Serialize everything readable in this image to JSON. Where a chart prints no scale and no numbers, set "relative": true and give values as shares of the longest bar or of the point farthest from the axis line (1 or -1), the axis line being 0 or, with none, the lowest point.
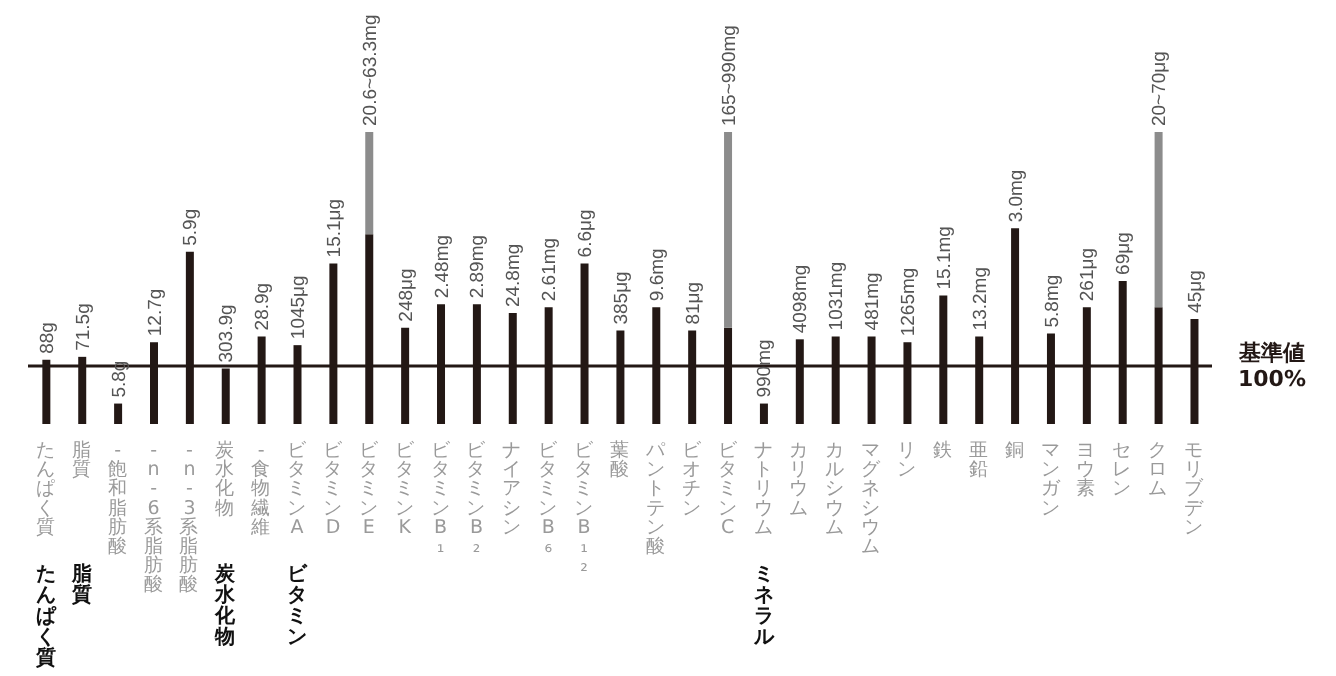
{
  "chart_data": {
    "type": "bar",
    "relative": true,
    "stacked": true,
    "categories": [
      "たんぱく質",
      "脂質",
      "-飽和脂肪酸",
      "-n-6系脂肪酸",
      "-n-3系脂肪酸",
      "炭水化物",
      "-食物繊維",
      "ビタミンA",
      "ビタミンD",
      "ビタミンE",
      "ビタミンK",
      "ビタミンB₁",
      "ビタミンB₂",
      "ナイアシン",
      "ビタミンB₆",
      "ビタミンB₁₂",
      "葉酸",
      "パントテン酸",
      "ビオチン",
      "ビタミンC",
      "ナトリウム",
      "カリウム",
      "カルシウム",
      "マグネシウム",
      "リン",
      "鉄",
      "亜鉛",
      "銅",
      "マンガン",
      "ヨウ素",
      "セレン",
      "クロム",
      "モリブデン"
    ],
    "series": [
      {
        "color": "#231815",
        "values": [
          0.22,
          0.23,
          0.07,
          0.28,
          0.59,
          0.19,
          0.3,
          0.27,
          0.55,
          0.65,
          0.33,
          0.41,
          0.41,
          0.38,
          0.4,
          0.55,
          0.32,
          0.4,
          0.32,
          0.33,
          0.07,
          0.29,
          0.3,
          0.3,
          0.28,
          0.44,
          0.3,
          0.67,
          0.31,
          0.4,
          0.49,
          0.4,
          0.36
        ]
      },
      {
        "color": "#8c8c8c",
        "values": [
          null,
          null,
          null,
          null,
          null,
          null,
          null,
          null,
          null,
          0.35,
          null,
          null,
          null,
          null,
          null,
          null,
          null,
          null,
          null,
          0.67,
          null,
          null,
          null,
          null,
          null,
          null,
          null,
          null,
          null,
          null,
          null,
          0.6,
          null
        ]
      }
    ],
    "ref_lines": [
      {
        "axis": "y",
        "value": 0.199,
        "label": "基準値 100%",
        "color": "#231815"
      }
    ],
    "annotations": [
      {
        "text": "88g",
        "x": "たんぱく質",
        "y": 0.22
      },
      {
        "text": "71.5g",
        "x": "脂質",
        "y": 0.23
      },
      {
        "text": "5.8g",
        "x": "-飽和脂肪酸",
        "y": 0.07
      },
      {
        "text": "12.7g",
        "x": "-n-6系脂肪酸",
        "y": 0.28
      },
      {
        "text": "5.9g",
        "x": "-n-3系脂肪酸",
        "y": 0.59
      },
      {
        "text": "303.9g",
        "x": "炭水化物",
        "y": 0.19
      },
      {
        "text": "28.9g",
        "x": "-食物繊維",
        "y": 0.3
      },
      {
        "text": "1045μg",
        "x": "ビタミンA",
        "y": 0.27
      },
      {
        "text": "15.1μg",
        "x": "ビタミンD",
        "y": 0.55
      },
      {
        "text": "20.6~63.3mg",
        "x": "ビタミンE",
        "y": 1.0
      },
      {
        "text": "248μg",
        "x": "ビタミンK",
        "y": 0.33
      },
      {
        "text": "2.48mg",
        "x": "ビタミンB₁",
        "y": 0.41
      },
      {
        "text": "2.89mg",
        "x": "ビタミンB₂",
        "y": 0.41
      },
      {
        "text": "24.8mg",
        "x": "ナイアシン",
        "y": 0.38
      },
      {
        "text": "2.61mg",
        "x": "ビタミンB₆",
        "y": 0.4
      },
      {
        "text": "6.6μg",
        "x": "ビタミンB₁₂",
        "y": 0.55
      },
      {
        "text": "385μg",
        "x": "葉酸",
        "y": 0.32
      },
      {
        "text": "9.6mg",
        "x": "パントテン酸",
        "y": 0.4
      },
      {
        "text": "81μg",
        "x": "ビオチン",
        "y": 0.32
      },
      {
        "text": "165~990mg",
        "x": "ビタミンC",
        "y": 1.0
      },
      {
        "text": "990mg",
        "x": "ナトリウム",
        "y": 0.07
      },
      {
        "text": "4098mg",
        "x": "カリウム",
        "y": 0.29
      },
      {
        "text": "1031mg",
        "x": "カルシウム",
        "y": 0.3
      },
      {
        "text": "481mg",
        "x": "マグネシウム",
        "y": 0.3
      },
      {
        "text": "1265mg",
        "x": "リン",
        "y": 0.28
      },
      {
        "text": "15.1mg",
        "x": "鉄",
        "y": 0.44
      },
      {
        "text": "13.2mg",
        "x": "亜鉛",
        "y": 0.3
      },
      {
        "text": "3.0mg",
        "x": "銅",
        "y": 0.67
      },
      {
        "text": "5.8mg",
        "x": "マンガン",
        "y": 0.31
      },
      {
        "text": "261μg",
        "x": "ヨウ素",
        "y": 0.4
      },
      {
        "text": "69μg",
        "x": "セレン",
        "y": 0.49
      },
      {
        "text": "20~70μg",
        "x": "クロム",
        "y": 1.0
      },
      {
        "text": "45μg",
        "x": "モリブデン",
        "y": 0.36
      },
      "たんぱく質",
      "脂質",
      "炭水化物",
      "ビタミン",
      "ミネラル"
    ]
  }
}
